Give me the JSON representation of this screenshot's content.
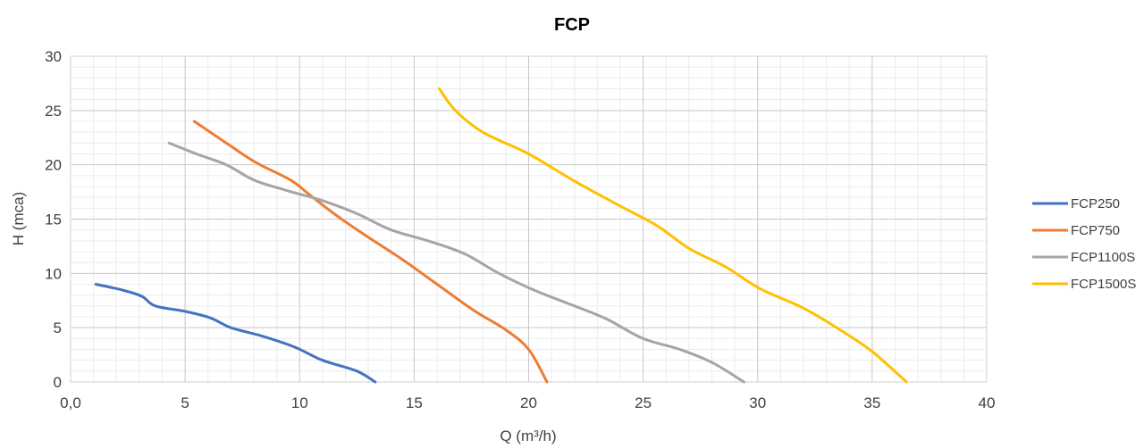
{
  "chart_data": {
    "type": "line",
    "title": "FCP",
    "xlabel": "Q (m³/h)",
    "ylabel": "H (mca)",
    "xlim": [
      0,
      40
    ],
    "ylim": [
      0,
      30
    ],
    "x_ticks": [
      {
        "value": 0,
        "label": "0,0"
      },
      {
        "value": 5,
        "label": "5"
      },
      {
        "value": 10,
        "label": "10"
      },
      {
        "value": 15,
        "label": "15"
      },
      {
        "value": 20,
        "label": "20"
      },
      {
        "value": 25,
        "label": "25"
      },
      {
        "value": 30,
        "label": "30"
      },
      {
        "value": 35,
        "label": "35"
      },
      {
        "value": 40,
        "label": "40"
      }
    ],
    "y_ticks": [
      {
        "value": 0,
        "label": "0"
      },
      {
        "value": 5,
        "label": "5"
      },
      {
        "value": 10,
        "label": "10"
      },
      {
        "value": 15,
        "label": "15"
      },
      {
        "value": 20,
        "label": "20"
      },
      {
        "value": 25,
        "label": "25"
      },
      {
        "value": 30,
        "label": "30"
      }
    ],
    "grid": {
      "major": true,
      "minor": true
    },
    "legend_position": "right",
    "series": [
      {
        "name": "FCP250",
        "color": "#4472C4",
        "points": [
          [
            1.1,
            9
          ],
          [
            2.2,
            8.5
          ],
          [
            3.1,
            7.9
          ],
          [
            3.7,
            7
          ],
          [
            5,
            6.5
          ],
          [
            6.1,
            5.9
          ],
          [
            7,
            5
          ],
          [
            8.4,
            4.2
          ],
          [
            9.8,
            3.2
          ],
          [
            11,
            2
          ],
          [
            12.5,
            1
          ],
          [
            13.3,
            0
          ]
        ]
      },
      {
        "name": "FCP750",
        "color": "#ED7D31",
        "points": [
          [
            5.4,
            24
          ],
          [
            6.8,
            22
          ],
          [
            8.1,
            20.2
          ],
          [
            9.6,
            18.6
          ],
          [
            10.4,
            17.3
          ],
          [
            11.5,
            15.5
          ],
          [
            12.8,
            13.6
          ],
          [
            14.4,
            11.4
          ],
          [
            16,
            9
          ],
          [
            17.6,
            6.6
          ],
          [
            19,
            4.8
          ],
          [
            20,
            3
          ],
          [
            20.8,
            0
          ]
        ]
      },
      {
        "name": "FCP1100S",
        "color": "#A5A5A5",
        "points": [
          [
            4.3,
            22
          ],
          [
            5.5,
            21
          ],
          [
            6.8,
            20
          ],
          [
            8,
            18.6
          ],
          [
            9.5,
            17.6
          ],
          [
            11,
            16.7
          ],
          [
            12.5,
            15.5
          ],
          [
            14,
            14
          ],
          [
            15.6,
            13
          ],
          [
            17.2,
            11.8
          ],
          [
            18.7,
            10
          ],
          [
            20.3,
            8.4
          ],
          [
            22,
            7
          ],
          [
            23.4,
            5.8
          ],
          [
            25,
            4
          ],
          [
            26.6,
            3
          ],
          [
            28,
            1.8
          ],
          [
            29.4,
            0
          ]
        ]
      },
      {
        "name": "FCP1500S",
        "color": "#FFC000",
        "points": [
          [
            16.1,
            27
          ],
          [
            16.8,
            25
          ],
          [
            18,
            23
          ],
          [
            20,
            21
          ],
          [
            22,
            18.5
          ],
          [
            24,
            16.2
          ],
          [
            25.6,
            14.4
          ],
          [
            27,
            12.3
          ],
          [
            28.6,
            10.6
          ],
          [
            30.1,
            8.6
          ],
          [
            32,
            6.8
          ],
          [
            33.6,
            4.8
          ],
          [
            35,
            2.8
          ],
          [
            36.5,
            0
          ]
        ]
      }
    ]
  }
}
